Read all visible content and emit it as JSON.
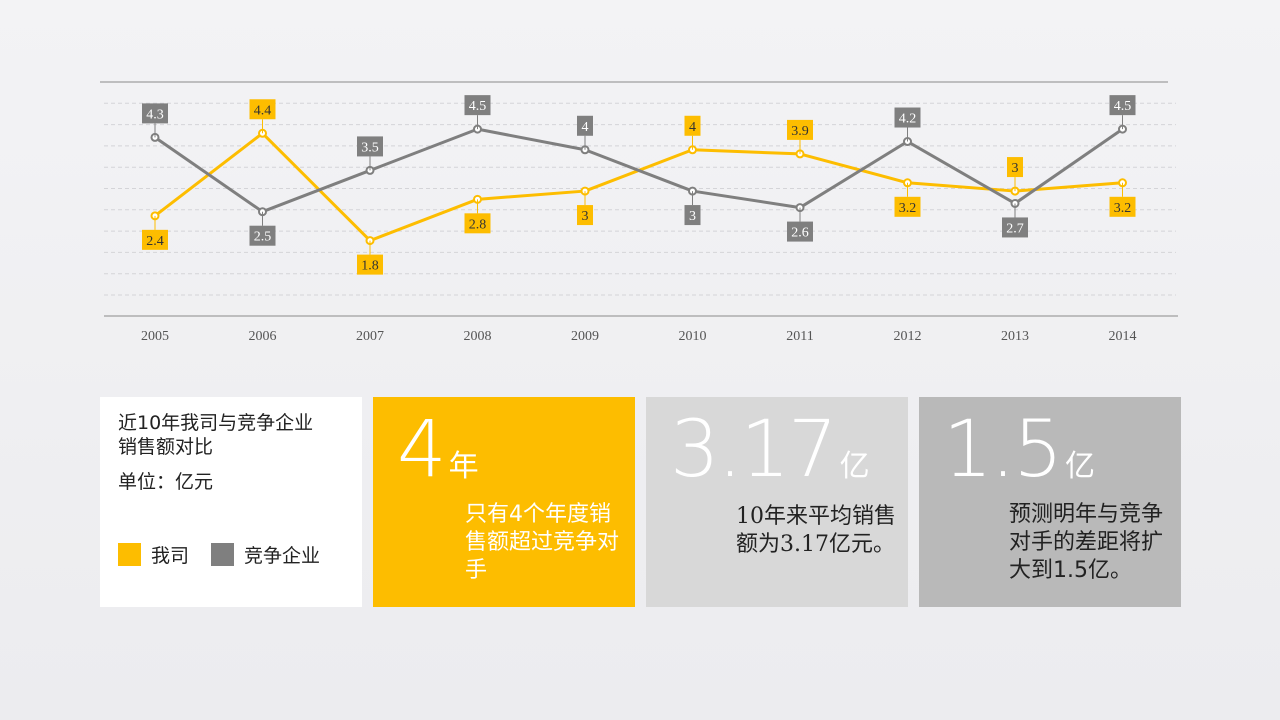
{
  "chart_data": {
    "type": "line",
    "categories": [
      "2005",
      "2006",
      "2007",
      "2008",
      "2009",
      "2010",
      "2011",
      "2012",
      "2013",
      "2014"
    ],
    "series": [
      {
        "name": "我司",
        "color": "#fdbd00",
        "values": [
          2.4,
          4.4,
          1.8,
          2.8,
          3,
          4,
          3.9,
          3.2,
          3,
          3.2
        ]
      },
      {
        "name": "竞争企业",
        "color": "#7f7f7f",
        "values": [
          4.3,
          2.5,
          3.5,
          4.5,
          4,
          3,
          2.6,
          4.2,
          2.7,
          4.5
        ]
      }
    ],
    "grid": true,
    "legend_placement": "bottom-left"
  },
  "legend_card": {
    "title": "近10年我司与竞争企业销售额对比",
    "unit_label": "单位：亿元",
    "items": [
      {
        "label": "我司",
        "color": "#fdbd00"
      },
      {
        "label": "竞争企业",
        "color": "#7f7f7f"
      }
    ]
  },
  "stats": [
    {
      "value": "4",
      "unit": "年",
      "text": "只有4个年度销售额超过竞争对手",
      "color": "#fdbd00"
    },
    {
      "value": "3.17",
      "unit": "亿",
      "text": "10年来平均销售额为3.17亿元。",
      "color": "#d8d8d8"
    },
    {
      "value": "1.5",
      "unit": "亿",
      "text": "预测明年与竞争对手的差距将扩大到1.5亿。",
      "color": "#b9b9b9"
    }
  ]
}
